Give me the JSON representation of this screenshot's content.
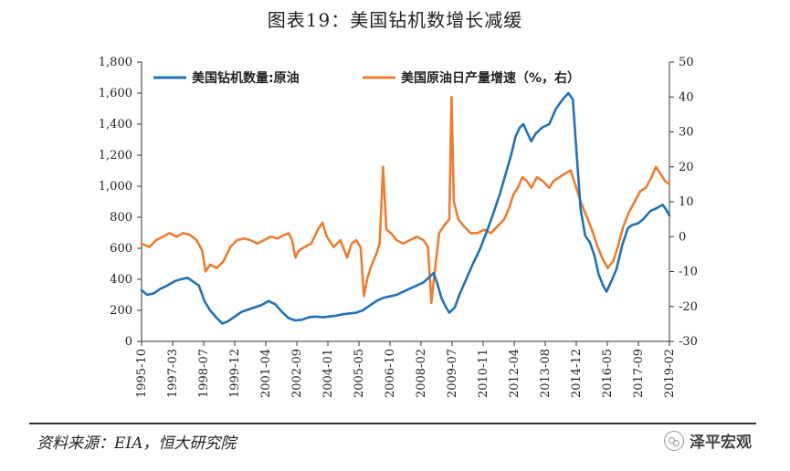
{
  "title": "图表19：美国钻机数增长减缓",
  "source": "资料来源：EIA，恒大研究院",
  "brand": {
    "icon": "wechat-icon",
    "text": "泽平宏观"
  },
  "colors": {
    "rigs": "#2171b5",
    "growth": "#ec7d32",
    "axis": "#333333"
  },
  "chart_data": {
    "type": "line",
    "legend_position": "top-left",
    "grid": false,
    "x_tick_labels": [
      "1995-10",
      "1997-03",
      "1998-07",
      "1999-12",
      "2001-04",
      "2002-09",
      "2004-01",
      "2005-05",
      "2006-10",
      "2008-02",
      "2009-07",
      "2010-11",
      "2012-04",
      "2013-08",
      "2014-12",
      "2016-05",
      "2017-09",
      "2019-02"
    ],
    "x_range": [
      1995.75,
      2019.25
    ],
    "y_left": {
      "ylim": [
        0,
        1800
      ],
      "ticks": [
        0,
        200,
        400,
        600,
        800,
        1000,
        1200,
        1400,
        1600,
        1800
      ],
      "tick_labels": [
        "0",
        "200",
        "400",
        "600",
        "800",
        "1,000",
        "1,200",
        "1,400",
        "1,600",
        "1,800"
      ]
    },
    "y_right": {
      "ylim": [
        -30,
        50
      ],
      "ticks": [
        -30,
        -20,
        -10,
        0,
        10,
        20,
        30,
        40,
        50
      ],
      "tick_labels": [
        "-30",
        "-20",
        "-10",
        "0",
        "10",
        "20",
        "30",
        "40",
        "50"
      ]
    },
    "series": [
      {
        "name": "美国钻机数量:原油",
        "axis": "left",
        "points": [
          [
            1995.75,
            330
          ],
          [
            1996.0,
            300
          ],
          [
            1996.3,
            310
          ],
          [
            1996.6,
            340
          ],
          [
            1996.9,
            360
          ],
          [
            1997.25,
            390
          ],
          [
            1997.5,
            400
          ],
          [
            1997.8,
            410
          ],
          [
            1998.0,
            390
          ],
          [
            1998.3,
            360
          ],
          [
            1998.55,
            260
          ],
          [
            1998.8,
            200
          ],
          [
            1999.1,
            150
          ],
          [
            1999.35,
            115
          ],
          [
            1999.6,
            130
          ],
          [
            1999.9,
            160
          ],
          [
            2000.2,
            190
          ],
          [
            2000.5,
            205
          ],
          [
            2000.8,
            220
          ],
          [
            2001.1,
            235
          ],
          [
            2001.4,
            260
          ],
          [
            2001.7,
            240
          ],
          [
            2002.0,
            190
          ],
          [
            2002.3,
            150
          ],
          [
            2002.6,
            135
          ],
          [
            2002.9,
            140
          ],
          [
            2003.2,
            155
          ],
          [
            2003.5,
            160
          ],
          [
            2003.8,
            155
          ],
          [
            2004.1,
            160
          ],
          [
            2004.4,
            165
          ],
          [
            2004.7,
            175
          ],
          [
            2005.0,
            180
          ],
          [
            2005.3,
            185
          ],
          [
            2005.6,
            200
          ],
          [
            2005.9,
            230
          ],
          [
            2006.2,
            260
          ],
          [
            2006.5,
            280
          ],
          [
            2006.8,
            290
          ],
          [
            2007.1,
            300
          ],
          [
            2007.4,
            320
          ],
          [
            2007.7,
            340
          ],
          [
            2008.0,
            360
          ],
          [
            2008.3,
            380
          ],
          [
            2008.6,
            420
          ],
          [
            2008.75,
            440
          ],
          [
            2008.9,
            380
          ],
          [
            2009.1,
            280
          ],
          [
            2009.3,
            220
          ],
          [
            2009.45,
            185
          ],
          [
            2009.7,
            220
          ],
          [
            2009.9,
            300
          ],
          [
            2010.2,
            400
          ],
          [
            2010.5,
            500
          ],
          [
            2010.8,
            590
          ],
          [
            2011.1,
            700
          ],
          [
            2011.4,
            820
          ],
          [
            2011.7,
            950
          ],
          [
            2012.0,
            1100
          ],
          [
            2012.2,
            1200
          ],
          [
            2012.4,
            1320
          ],
          [
            2012.6,
            1380
          ],
          [
            2012.75,
            1400
          ],
          [
            2012.9,
            1350
          ],
          [
            2013.1,
            1290
          ],
          [
            2013.3,
            1340
          ],
          [
            2013.6,
            1380
          ],
          [
            2013.9,
            1400
          ],
          [
            2014.2,
            1500
          ],
          [
            2014.5,
            1560
          ],
          [
            2014.75,
            1600
          ],
          [
            2014.95,
            1560
          ],
          [
            2015.1,
            1250
          ],
          [
            2015.3,
            850
          ],
          [
            2015.5,
            680
          ],
          [
            2015.7,
            640
          ],
          [
            2015.9,
            560
          ],
          [
            2016.1,
            430
          ],
          [
            2016.3,
            360
          ],
          [
            2016.45,
            320
          ],
          [
            2016.7,
            400
          ],
          [
            2016.9,
            470
          ],
          [
            2017.15,
            620
          ],
          [
            2017.4,
            730
          ],
          [
            2017.6,
            750
          ],
          [
            2017.85,
            760
          ],
          [
            2018.1,
            790
          ],
          [
            2018.4,
            840
          ],
          [
            2018.7,
            860
          ],
          [
            2018.95,
            880
          ],
          [
            2019.1,
            850
          ],
          [
            2019.25,
            810
          ]
        ]
      },
      {
        "name": "美国原油日产量增速（%，右）",
        "axis": "right",
        "points": [
          [
            1995.75,
            -2
          ],
          [
            1996.1,
            -3
          ],
          [
            1996.4,
            -1
          ],
          [
            1996.7,
            0
          ],
          [
            1997.0,
            1
          ],
          [
            1997.3,
            0
          ],
          [
            1997.6,
            1
          ],
          [
            1997.9,
            0.5
          ],
          [
            1998.2,
            -1
          ],
          [
            1998.45,
            -4
          ],
          [
            1998.6,
            -10
          ],
          [
            1998.8,
            -8
          ],
          [
            1999.1,
            -9
          ],
          [
            1999.4,
            -7
          ],
          [
            1999.7,
            -3
          ],
          [
            2000.0,
            -1
          ],
          [
            2000.3,
            -0.5
          ],
          [
            2000.6,
            -1
          ],
          [
            2000.9,
            -2
          ],
          [
            2001.2,
            -1
          ],
          [
            2001.5,
            0
          ],
          [
            2001.8,
            -0.5
          ],
          [
            2002.1,
            0.5
          ],
          [
            2002.3,
            1
          ],
          [
            2002.45,
            -1
          ],
          [
            2002.6,
            -6
          ],
          [
            2002.75,
            -4
          ],
          [
            2003.0,
            -3
          ],
          [
            2003.3,
            -2
          ],
          [
            2003.6,
            2
          ],
          [
            2003.8,
            4
          ],
          [
            2004.0,
            0
          ],
          [
            2004.3,
            -3
          ],
          [
            2004.6,
            -1
          ],
          [
            2004.9,
            -6
          ],
          [
            2005.1,
            -2
          ],
          [
            2005.3,
            -1
          ],
          [
            2005.5,
            -3
          ],
          [
            2005.65,
            -17
          ],
          [
            2005.8,
            -12
          ],
          [
            2006.0,
            -8
          ],
          [
            2006.2,
            -5
          ],
          [
            2006.35,
            -2
          ],
          [
            2006.5,
            20
          ],
          [
            2006.65,
            2
          ],
          [
            2006.85,
            1
          ],
          [
            2007.1,
            -1
          ],
          [
            2007.4,
            -2
          ],
          [
            2007.7,
            -1
          ],
          [
            2008.0,
            0
          ],
          [
            2008.3,
            -1
          ],
          [
            2008.5,
            -3
          ],
          [
            2008.65,
            -19
          ],
          [
            2008.8,
            -10
          ],
          [
            2009.0,
            1
          ],
          [
            2009.2,
            3
          ],
          [
            2009.45,
            5
          ],
          [
            2009.55,
            40
          ],
          [
            2009.65,
            10
          ],
          [
            2009.85,
            5
          ],
          [
            2010.1,
            3
          ],
          [
            2010.4,
            1
          ],
          [
            2010.7,
            1
          ],
          [
            2011.0,
            2
          ],
          [
            2011.3,
            1
          ],
          [
            2011.6,
            3
          ],
          [
            2011.9,
            5
          ],
          [
            2012.1,
            8
          ],
          [
            2012.3,
            12
          ],
          [
            2012.5,
            14
          ],
          [
            2012.7,
            17
          ],
          [
            2012.9,
            16
          ],
          [
            2013.1,
            14
          ],
          [
            2013.35,
            17
          ],
          [
            2013.6,
            16
          ],
          [
            2013.9,
            14
          ],
          [
            2014.1,
            16
          ],
          [
            2014.35,
            17
          ],
          [
            2014.6,
            18
          ],
          [
            2014.85,
            19
          ],
          [
            2015.05,
            15
          ],
          [
            2015.3,
            10
          ],
          [
            2015.55,
            6
          ],
          [
            2015.8,
            2
          ],
          [
            2016.0,
            -2
          ],
          [
            2016.25,
            -6
          ],
          [
            2016.5,
            -9
          ],
          [
            2016.75,
            -7
          ],
          [
            2016.95,
            -3
          ],
          [
            2017.2,
            3
          ],
          [
            2017.45,
            7
          ],
          [
            2017.7,
            10
          ],
          [
            2017.95,
            13
          ],
          [
            2018.2,
            14
          ],
          [
            2018.45,
            17
          ],
          [
            2018.65,
            20
          ],
          [
            2018.85,
            18
          ],
          [
            2019.05,
            16
          ],
          [
            2019.25,
            15
          ]
        ]
      }
    ]
  }
}
